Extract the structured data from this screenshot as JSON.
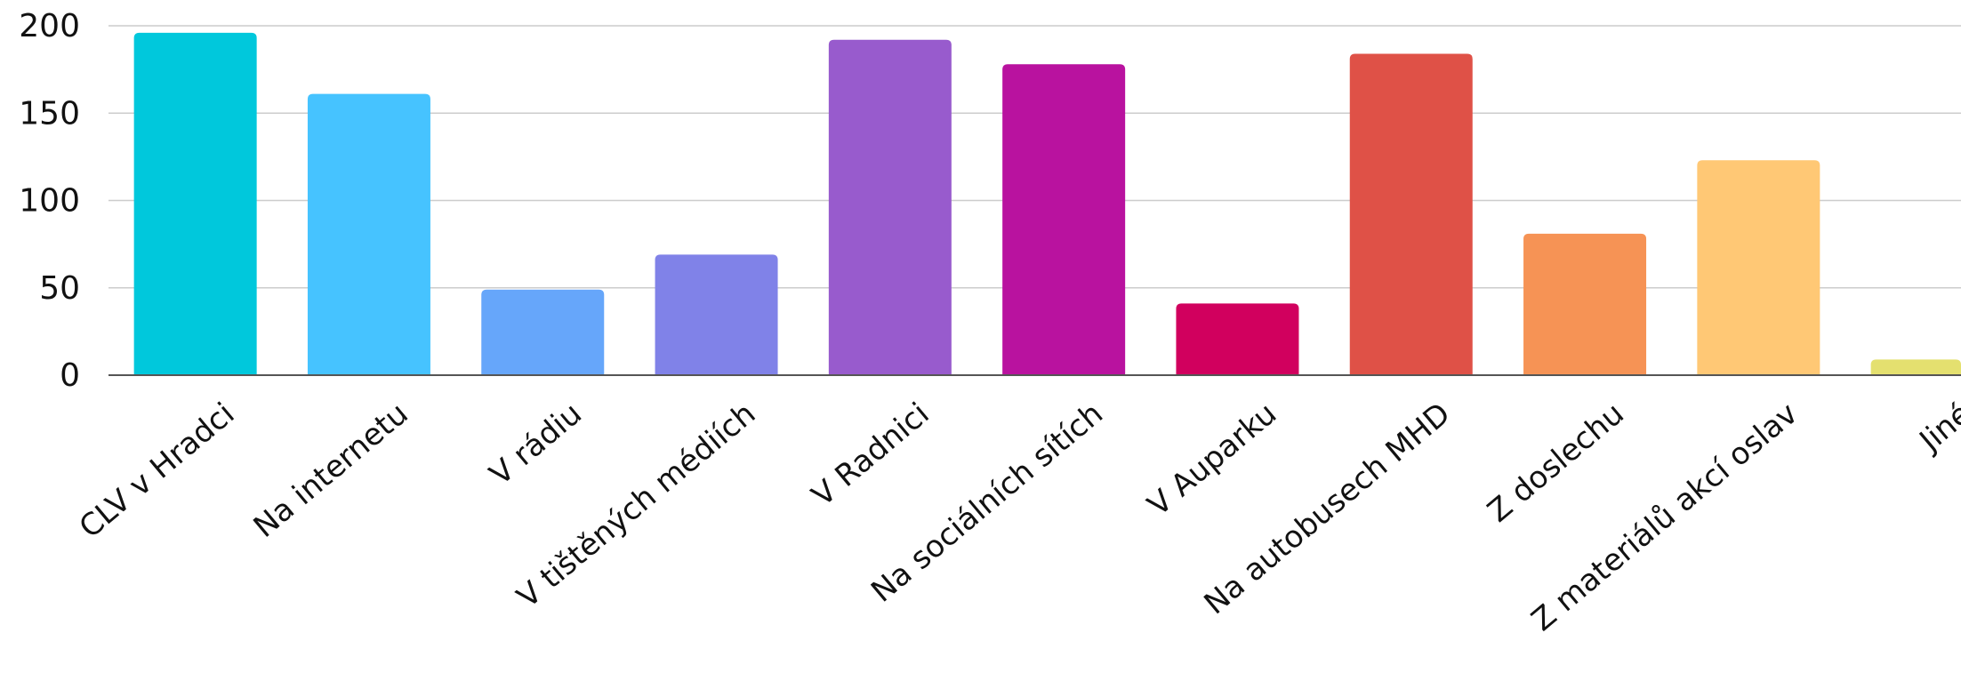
{
  "chart_data": {
    "type": "bar",
    "title": "",
    "xlabel": "",
    "ylabel": "",
    "ylim": [
      0,
      200
    ],
    "yticks": [
      0,
      50,
      100,
      150,
      200
    ],
    "grid": true,
    "legend": "none",
    "categories": [
      "CLV v Hradci",
      "Na internetu",
      "V rádiu",
      "V tištěných médiích",
      "V Radnici",
      "Na sociálních sítích",
      "V Auparku",
      "Na autobusech MHD",
      "Z doslechu",
      "Z materiálů akcí oslav",
      "Jiné"
    ],
    "values": [
      196,
      161,
      49,
      69,
      192,
      178,
      41,
      184,
      81,
      123,
      9
    ],
    "colors": [
      "#00C8DC",
      "#46C3FF",
      "#66A6FA",
      "#8082E8",
      "#985BCD",
      "#B9129F",
      "#D1005E",
      "#DF5147",
      "#F69355",
      "#FFC875",
      "#E4E06F"
    ]
  }
}
